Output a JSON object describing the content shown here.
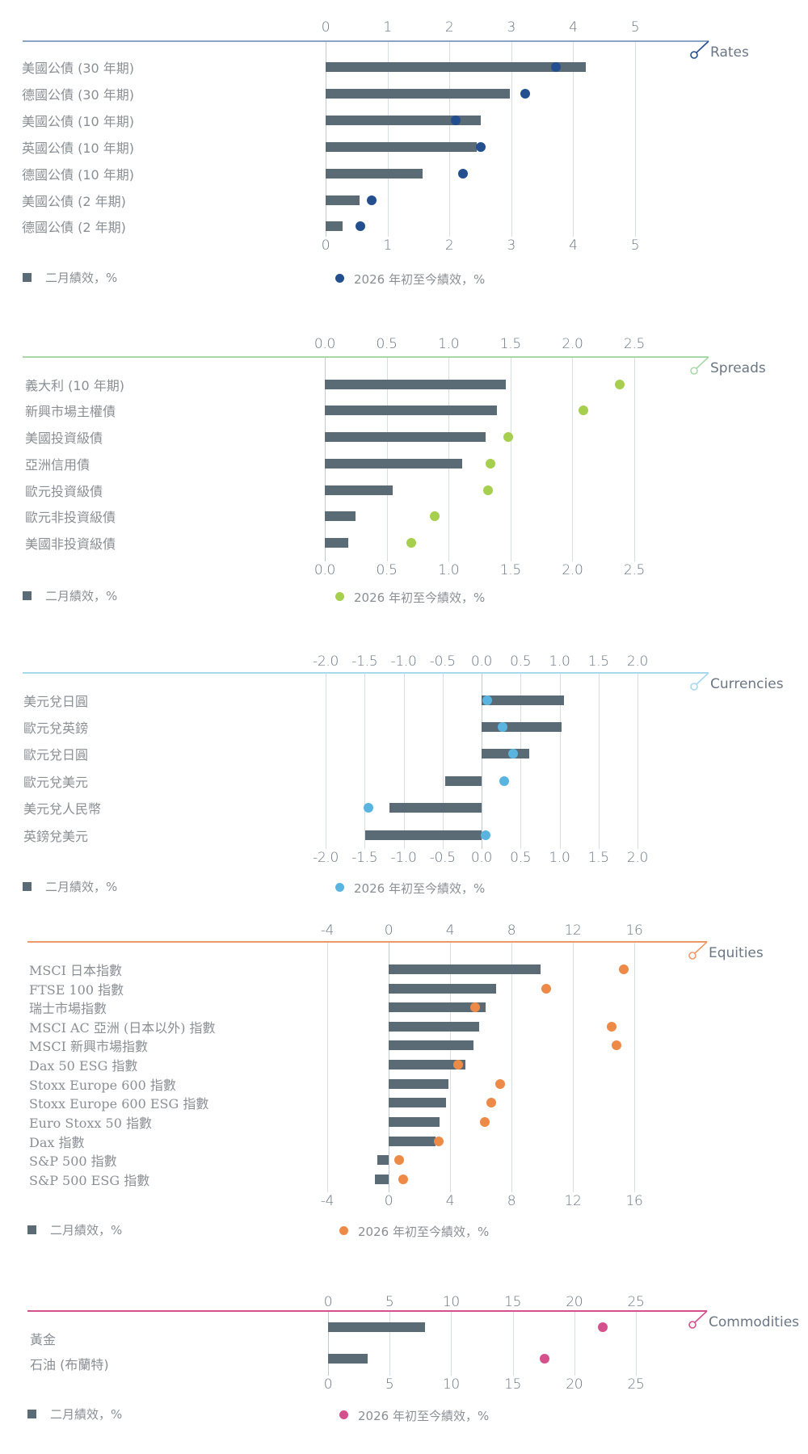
{
  "legend": {
    "bar_label": "二月績效，%",
    "dot_label": "2026 年初至今績效，%"
  },
  "colors": {
    "bar": "#5a6b76",
    "rates": "#244f8f",
    "rates_line": "#8aa4c4",
    "spreads": "#a5cf4c",
    "spreads_line": "#a8d8a8",
    "currencies": "#5ab4e0",
    "currencies_line": "#a6d8ee",
    "equities": "#ee8a48",
    "equities_line": "#ee9a68",
    "commodities": "#d4518e",
    "commodities_line": "#d4518e"
  },
  "chart_data": [
    {
      "type": "bar",
      "title": "Rates",
      "orientation": "horizontal",
      "categories": [
        "美國公債 (30 年期)",
        "德國公債 (30 年期)",
        "美國公債 (10 年期)",
        "英國公債 (10 年期)",
        "德國公債 (10 年期)",
        "美國公債 (2 年期)",
        "德國公債 (2 年期)"
      ],
      "series": [
        {
          "name": "二月績效，%",
          "kind": "bar",
          "values": [
            4.2,
            2.97,
            2.51,
            2.44,
            1.57,
            0.55,
            0.27
          ]
        },
        {
          "name": "2026 年初至今績效，%",
          "kind": "dot",
          "values": [
            3.72,
            3.22,
            2.1,
            2.5,
            2.22,
            0.74,
            0.56
          ]
        }
      ],
      "xticks": [
        "0",
        "1",
        "2",
        "3",
        "4",
        "5"
      ],
      "xlim": [
        0,
        5
      ],
      "grid": true,
      "legend_position": "bottom"
    },
    {
      "type": "bar",
      "title": "Spreads",
      "orientation": "horizontal",
      "categories": [
        "義大利 (10 年期)",
        "新興市場主權債",
        "美國投資級債",
        "亞洲信用債",
        "歐元投資級債",
        "歐元非投資級債",
        "美國非投資級債"
      ],
      "series": [
        {
          "name": "二月績效，%",
          "kind": "bar",
          "values": [
            1.46,
            1.39,
            1.3,
            1.11,
            0.55,
            0.25,
            0.19
          ]
        },
        {
          "name": "2026 年初至今績效，%",
          "kind": "dot",
          "values": [
            2.38,
            2.09,
            1.48,
            1.34,
            1.32,
            0.89,
            0.7
          ]
        }
      ],
      "xticks": [
        "0.0",
        "0.5",
        "1.0",
        "1.5",
        "2.0",
        "2.5"
      ],
      "xlim": [
        0,
        2.5
      ],
      "grid": true,
      "legend_position": "bottom"
    },
    {
      "type": "bar",
      "title": "Currencies",
      "orientation": "horizontal",
      "categories": [
        "美元兌日圓",
        "歐元兌英鎊",
        "歐元兌日圓",
        "歐元兌美元",
        "美元兌人民幣",
        "英鎊兌美元"
      ],
      "series": [
        {
          "name": "二月績效，%",
          "kind": "bar",
          "values": [
            1.06,
            1.03,
            0.61,
            -0.47,
            -1.18,
            -1.49
          ]
        },
        {
          "name": "2026 年初至今績效，%",
          "kind": "dot",
          "values": [
            0.07,
            0.27,
            0.4,
            0.29,
            -1.45,
            0.05
          ]
        }
      ],
      "xticks": [
        "-2.0",
        "-1.5",
        "-1.0",
        "-0.5",
        "0.0",
        "0.5",
        "1.0",
        "1.5",
        "2.0"
      ],
      "xlim": [
        -2,
        2
      ],
      "grid": true,
      "legend_position": "bottom"
    },
    {
      "type": "bar",
      "title": "Equities",
      "orientation": "horizontal",
      "categories": [
        "MSCI 日本指數",
        "FTSE 100 指數",
        "瑞士市場指數",
        "MSCI AC 亞洲 (日本以外) 指數",
        "MSCI 新興市場指數",
        "Dax 50 ESG 指數",
        "Stoxx Europe 600 指數",
        "Stoxx Europe 600 ESG 指數",
        "Euro Stoxx 50 指數",
        "Dax 指數",
        "S&P 500 指數",
        "S&P 500 ESG 指數"
      ],
      "series": [
        {
          "name": "二月績效，%",
          "kind": "bar",
          "values": [
            9.9,
            7.0,
            6.3,
            5.9,
            5.5,
            5.0,
            3.9,
            3.75,
            3.3,
            3.05,
            -0.75,
            -0.9
          ]
        },
        {
          "name": "2026 年初至今績效，%",
          "kind": "dot",
          "values": [
            15.3,
            10.25,
            5.65,
            14.55,
            14.85,
            4.55,
            7.25,
            6.7,
            6.25,
            3.25,
            0.7,
            0.95
          ]
        }
      ],
      "xticks": [
        "-4",
        "0",
        "4",
        "8",
        "12",
        "16"
      ],
      "xlim": [
        -4,
        16
      ],
      "grid": true,
      "legend_position": "bottom"
    },
    {
      "type": "bar",
      "title": "Commodities",
      "orientation": "horizontal",
      "categories": [
        "黃金",
        "石油 (布蘭特)"
      ],
      "series": [
        {
          "name": "二月績效，%",
          "kind": "bar",
          "values": [
            7.9,
            3.2
          ]
        },
        {
          "name": "2026 年初至今績效，%",
          "kind": "dot",
          "values": [
            22.3,
            17.6
          ]
        }
      ],
      "xticks": [
        "0",
        "5",
        "10",
        "15",
        "20",
        "25"
      ],
      "xlim": [
        0,
        25
      ],
      "grid": true,
      "legend_position": "bottom"
    }
  ]
}
